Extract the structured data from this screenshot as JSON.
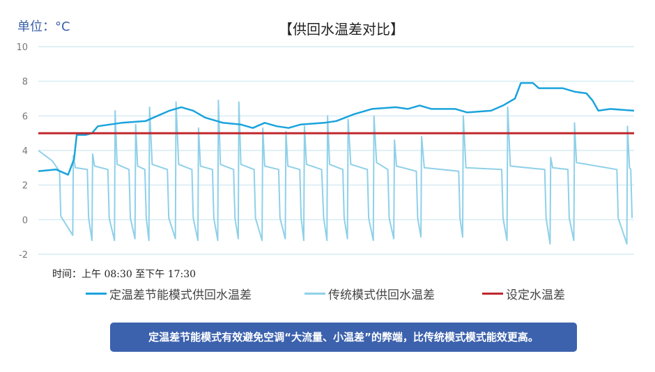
{
  "chart_data": {
    "type": "line",
    "title": "【供回水温差对比】",
    "unit_label": "单位：°C",
    "time_label": "时间：上午 08:30 至下午 17:30",
    "xlim": [
      8.5,
      17.5
    ],
    "ylim": [
      -2,
      10
    ],
    "yticks": [
      "10",
      "8",
      "6",
      "4",
      "2",
      "0",
      "-2"
    ],
    "ytick_values": [
      10,
      8,
      6,
      4,
      2,
      0,
      -2
    ],
    "grid": true,
    "legend_position": "bottom",
    "series": [
      {
        "name": "定温差节能模式供回水温差",
        "color": "#1aa3dc",
        "x": [
          8.5,
          8.77,
          8.95,
          9.04,
          9.08,
          9.22,
          9.31,
          9.4,
          9.76,
          10.12,
          10.3,
          10.48,
          10.66,
          10.84,
          11.02,
          11.29,
          11.56,
          11.74,
          11.92,
          12.1,
          12.28,
          12.46,
          12.82,
          13.0,
          13.27,
          13.54,
          13.9,
          14.08,
          14.26,
          14.44,
          14.8,
          14.98,
          15.34,
          15.52,
          15.7,
          15.79,
          15.97,
          16.06,
          16.42,
          16.6,
          16.78,
          16.87,
          16.96,
          17.14,
          17.5
        ],
        "y": [
          2.8,
          2.9,
          2.6,
          3.5,
          4.9,
          4.9,
          5.0,
          5.4,
          5.6,
          5.7,
          6.0,
          6.3,
          6.5,
          6.3,
          5.9,
          5.6,
          5.5,
          5.3,
          5.6,
          5.4,
          5.3,
          5.5,
          5.6,
          5.7,
          6.1,
          6.4,
          6.5,
          6.4,
          6.6,
          6.4,
          6.4,
          6.2,
          6.3,
          6.6,
          7.0,
          7.9,
          7.9,
          7.6,
          7.6,
          7.4,
          7.3,
          6.9,
          6.3,
          6.4,
          6.3
        ]
      },
      {
        "name": "传统模式供回水温差",
        "color": "#8fd0e8",
        "x": [
          8.5,
          8.71,
          8.82,
          8.84,
          9.02,
          9.03,
          9.06,
          9.24,
          9.26,
          9.31,
          9.32,
          9.35,
          9.55,
          9.57,
          9.65,
          9.66,
          9.69,
          9.87,
          9.89,
          9.96,
          9.97,
          10.0,
          10.11,
          10.13,
          10.17,
          10.18,
          10.22,
          10.45,
          10.47,
          10.57,
          10.58,
          10.62,
          10.82,
          10.84,
          10.91,
          10.92,
          10.95,
          11.13,
          11.15,
          11.21,
          11.22,
          11.25,
          11.45,
          11.47,
          11.52,
          11.53,
          11.56,
          11.76,
          11.78,
          11.88,
          11.89,
          11.92,
          12.13,
          12.15,
          12.23,
          12.24,
          12.27,
          12.45,
          12.47,
          12.51,
          12.52,
          12.55,
          12.78,
          12.81,
          12.86,
          12.87,
          12.9,
          13.1,
          13.12,
          13.17,
          13.18,
          13.22,
          13.47,
          13.49,
          13.56,
          13.57,
          13.61,
          13.78,
          13.8,
          13.87,
          13.88,
          13.91,
          14.21,
          14.23,
          14.28,
          14.29,
          14.33,
          14.85,
          14.87,
          14.91,
          14.92,
          14.96,
          15.5,
          15.52,
          15.58,
          15.59,
          15.63,
          16.15,
          16.17,
          16.23,
          16.24,
          16.27,
          16.5,
          16.52,
          16.59,
          16.6,
          16.63,
          17.24,
          17.26,
          17.39,
          17.4,
          17.43,
          17.45,
          17.47
        ],
        "y": [
          4.0,
          3.4,
          2.8,
          0.2,
          -0.9,
          3.7,
          3.0,
          2.9,
          0.1,
          -1.2,
          3.8,
          3.1,
          2.9,
          0.1,
          -1.2,
          6.3,
          3.2,
          2.9,
          0.1,
          -1.1,
          5.5,
          3.1,
          2.9,
          0.1,
          -1.2,
          6.5,
          3.2,
          2.9,
          0.1,
          -1.1,
          6.8,
          3.2,
          2.9,
          0.1,
          -1.2,
          5.3,
          3.1,
          2.9,
          0.1,
          -1.2,
          6.9,
          3.2,
          2.9,
          0.1,
          -1.1,
          6.8,
          3.2,
          2.9,
          0.1,
          -1.2,
          5.3,
          3.1,
          2.9,
          0.1,
          -1.1,
          5.1,
          3.1,
          2.9,
          0.1,
          -1.2,
          5.4,
          3.2,
          2.9,
          0.1,
          -1.2,
          6.0,
          3.2,
          2.9,
          0.1,
          -1.1,
          5.8,
          3.2,
          2.9,
          0.1,
          -1.2,
          6.0,
          3.3,
          2.9,
          0.1,
          -1.1,
          4.6,
          3.1,
          2.8,
          0.1,
          -1.0,
          4.8,
          3.0,
          2.8,
          0.1,
          -1.0,
          6.0,
          3.0,
          2.9,
          0.1,
          -1.2,
          6.5,
          3.1,
          2.9,
          0.1,
          -1.4,
          3.6,
          3.0,
          2.9,
          0.1,
          -1.2,
          5.6,
          3.3,
          2.9,
          0.1,
          -1.4,
          5.4,
          3.0,
          2.9,
          0.1
        ]
      },
      {
        "name": "设定水温差",
        "color": "#c0282d",
        "x": [
          8.5,
          17.5
        ],
        "y": [
          5,
          5
        ]
      }
    ]
  },
  "note": "定温差节能模式有效避免空调“大流量、小温差”的弊端，比传统模式模式能效更高。"
}
